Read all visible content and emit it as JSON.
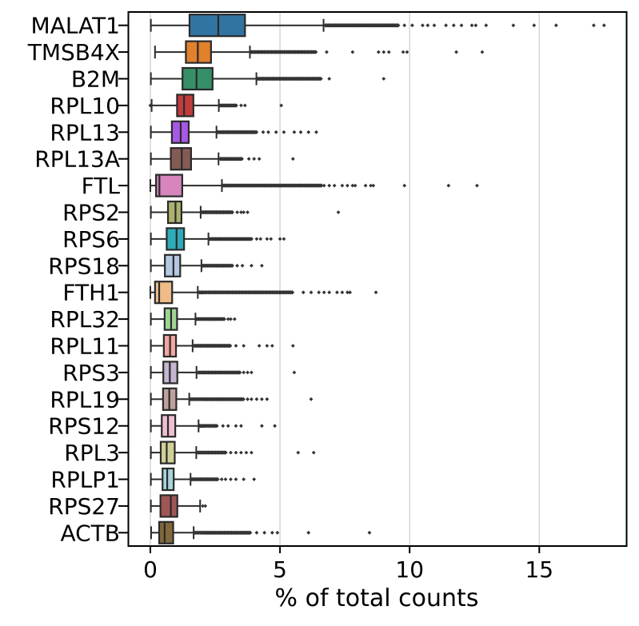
{
  "chart_data": {
    "type": "boxplot-horizontal",
    "title": "",
    "xlabel": "% of total counts",
    "xlim": [
      -0.86,
      18.35
    ],
    "xticks": [
      0,
      5,
      10,
      15
    ],
    "grid": true,
    "legend": "none",
    "styles": {
      "edge_color": "#2a2a2a",
      "flier_color": "#333333",
      "grid_color": "#d9d9d9",
      "spine_color": "#000000",
      "background": "#ffffff"
    },
    "categories": [
      "MALAT1",
      "TMSB4X",
      "B2M",
      "RPL10",
      "RPL13",
      "RPL13A",
      "FTL",
      "RPS2",
      "RPS6",
      "RPS18",
      "FTH1",
      "RPL32",
      "RPL11",
      "RPS3",
      "RPL19",
      "RPS12",
      "RPL3",
      "RPLP1",
      "RPS27",
      "ACTB"
    ],
    "series": [
      {
        "name": "MALAT1",
        "color": "#3274A1",
        "whislo": 0.02,
        "q1": 1.51,
        "med": 2.62,
        "q3": 3.65,
        "whishi": 6.68,
        "outlier_band": [
          6.75,
          9.6
        ],
        "outliers": [
          9.8,
          10.1,
          10.5,
          10.7,
          10.95,
          11.4,
          11.7,
          12.0,
          12.4,
          12.55,
          12.95,
          14.0,
          14.8,
          15.65,
          17.1,
          17.5
        ]
      },
      {
        "name": "TMSB4X",
        "color": "#E1812C",
        "whislo": 0.18,
        "q1": 1.37,
        "med": 1.83,
        "q3": 2.34,
        "whishi": 3.84,
        "outlier_band": [
          3.9,
          6.4
        ],
        "outliers": [
          6.8,
          7.8,
          8.8,
          9.0,
          9.2,
          9.75,
          9.9,
          11.8,
          12.8
        ]
      },
      {
        "name": "B2M",
        "color": "#368F67",
        "whislo": 0.02,
        "q1": 1.24,
        "med": 1.78,
        "q3": 2.4,
        "whishi": 4.09,
        "outlier_band": [
          4.15,
          6.6
        ],
        "outliers": [
          6.9,
          9.0
        ]
      },
      {
        "name": "RPL10",
        "color": "#C03D3E",
        "whislo": 0.05,
        "q1": 1.03,
        "med": 1.3,
        "q3": 1.66,
        "whishi": 2.64,
        "outlier_band": [
          2.7,
          3.35
        ],
        "outliers": [
          0.0,
          3.5,
          3.65,
          5.05
        ]
      },
      {
        "name": "RPL13",
        "color": "#A758E5",
        "whislo": 0.02,
        "q1": 0.83,
        "med": 1.17,
        "q3": 1.48,
        "whishi": 2.55,
        "outlier_band": [
          2.6,
          4.1
        ],
        "outliers": [
          4.35,
          4.55,
          4.85,
          5.15,
          5.55,
          5.8,
          6.1,
          6.4
        ]
      },
      {
        "name": "RPL13A",
        "color": "#845B53",
        "whislo": 0.02,
        "q1": 0.79,
        "med": 1.21,
        "q3": 1.57,
        "whishi": 2.63,
        "outlier_band": [
          2.7,
          3.55
        ],
        "outliers": [
          3.8,
          4.0,
          4.2,
          5.5
        ]
      },
      {
        "name": "FTL",
        "color": "#D685BD",
        "whislo": 0.0,
        "q1": 0.22,
        "med": 0.35,
        "q3": 1.23,
        "whishi": 2.76,
        "outlier_band": [
          2.8,
          6.6
        ],
        "outliers": [
          6.7,
          6.9,
          7.1,
          7.4,
          7.6,
          7.8,
          7.9,
          8.3,
          8.5,
          8.6,
          9.8,
          11.5,
          12.6
        ]
      },
      {
        "name": "RPS2",
        "color": "#ACB26D",
        "whislo": 0.02,
        "q1": 0.68,
        "med": 0.97,
        "q3": 1.2,
        "whishi": 1.94,
        "outlier_band": [
          2.0,
          3.2
        ],
        "outliers": [
          3.35,
          3.5,
          3.6,
          3.75,
          7.25
        ]
      },
      {
        "name": "RPS6",
        "color": "#2EABB8",
        "whislo": 0.02,
        "q1": 0.63,
        "med": 1.01,
        "q3": 1.3,
        "whishi": 2.24,
        "outlier_band": [
          2.3,
          3.9
        ],
        "outliers": [
          4.1,
          4.25,
          4.5,
          4.65,
          5.0,
          5.15
        ]
      },
      {
        "name": "RPS18",
        "color": "#B5C8E1",
        "whislo": 0.02,
        "q1": 0.56,
        "med": 0.89,
        "q3": 1.15,
        "whishi": 1.97,
        "outlier_band": [
          2.0,
          3.2
        ],
        "outliers": [
          3.35,
          3.55,
          3.9,
          4.3
        ]
      },
      {
        "name": "FTH1",
        "color": "#EEBB89",
        "whislo": 0.0,
        "q1": 0.18,
        "med": 0.34,
        "q3": 0.84,
        "whishi": 1.83,
        "outlier_band": [
          1.9,
          5.5
        ],
        "outliers": [
          5.9,
          6.2,
          6.5,
          6.7,
          6.9,
          7.2,
          7.4,
          7.6,
          7.7,
          8.7
        ]
      },
      {
        "name": "RPL32",
        "color": "#9FD495",
        "whislo": 0.02,
        "q1": 0.55,
        "med": 0.8,
        "q3": 1.03,
        "whishi": 1.74,
        "outlier_band": [
          1.8,
          2.9
        ],
        "outliers": [
          3.0,
          3.1,
          3.25
        ]
      },
      {
        "name": "RPL11",
        "color": "#F2A5A3",
        "whislo": 0.02,
        "q1": 0.52,
        "med": 0.76,
        "q3": 0.99,
        "whishi": 1.63,
        "outlier_band": [
          1.7,
          3.1
        ],
        "outliers": [
          3.3,
          3.6,
          4.2,
          4.5,
          4.7,
          5.5
        ]
      },
      {
        "name": "RPS3",
        "color": "#C4B5D0",
        "whislo": 0.02,
        "q1": 0.5,
        "med": 0.75,
        "q3": 1.04,
        "whishi": 1.78,
        "outlier_band": [
          1.85,
          3.5
        ],
        "outliers": [
          3.6,
          3.75,
          3.9,
          5.55
        ]
      },
      {
        "name": "RPL19",
        "color": "#BEA09A",
        "whislo": 0.02,
        "q1": 0.49,
        "med": 0.73,
        "q3": 1.0,
        "whishi": 1.5,
        "outlier_band": [
          1.55,
          3.6
        ],
        "outliers": [
          3.75,
          3.9,
          4.1,
          4.3,
          4.5,
          6.2
        ]
      },
      {
        "name": "RPS12",
        "color": "#EFBED3",
        "whislo": 0.02,
        "q1": 0.44,
        "med": 0.68,
        "q3": 0.96,
        "whishi": 1.86,
        "outlier_band": [
          1.9,
          2.6
        ],
        "outliers": [
          2.8,
          3.0,
          3.3,
          3.5,
          4.3,
          4.8
        ]
      },
      {
        "name": "RPL3",
        "color": "#D1D197",
        "whislo": 0.02,
        "q1": 0.4,
        "med": 0.63,
        "q3": 0.94,
        "whishi": 1.77,
        "outlier_band": [
          1.8,
          2.95
        ],
        "outliers": [
          3.1,
          3.3,
          3.5,
          3.7,
          3.9,
          5.7,
          6.3
        ]
      },
      {
        "name": "RPLP1",
        "color": "#A7D4DC",
        "whislo": 0.02,
        "q1": 0.47,
        "med": 0.65,
        "q3": 0.9,
        "whishi": 1.55,
        "outlier_band": [
          1.6,
          2.6
        ],
        "outliers": [
          2.75,
          2.9,
          3.1,
          3.3,
          3.6,
          4.0
        ]
      },
      {
        "name": "RPS27",
        "color": "#A15656",
        "whislo": 0.02,
        "q1": 0.39,
        "med": 0.79,
        "q3": 1.04,
        "whishi": 1.92,
        "outlier_band": null,
        "outliers": [
          2.02,
          2.12
        ]
      },
      {
        "name": "ACTB",
        "color": "#81693C",
        "whislo": 0.03,
        "q1": 0.34,
        "med": 0.55,
        "q3": 0.88,
        "whishi": 1.67,
        "outlier_band": [
          1.7,
          3.9
        ],
        "outliers": [
          4.1,
          4.4,
          4.7,
          4.9,
          6.1,
          8.45
        ]
      }
    ]
  }
}
